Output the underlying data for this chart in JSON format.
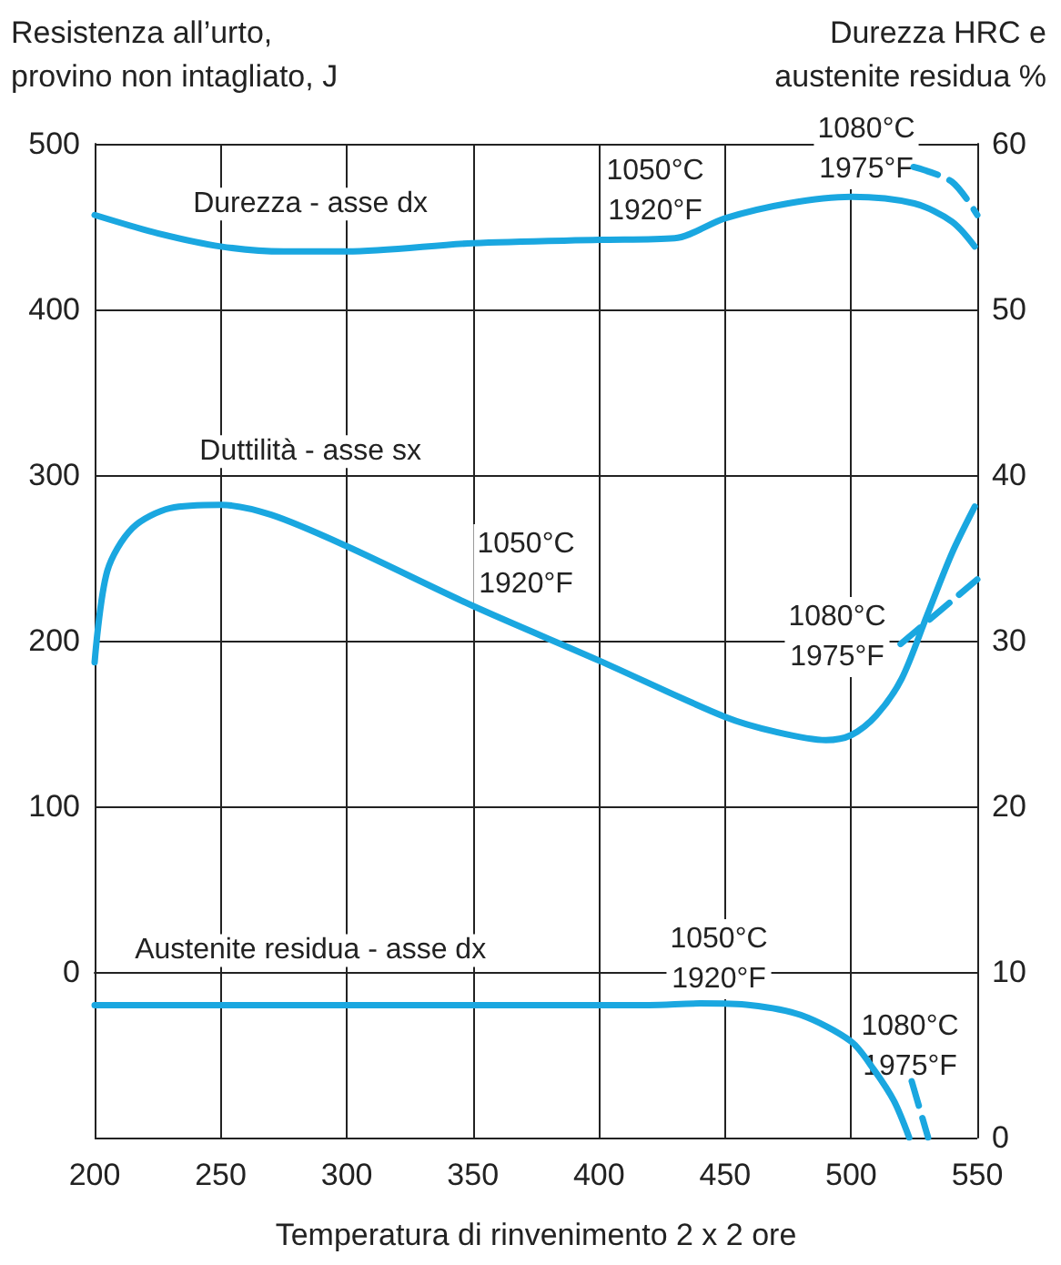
{
  "chart_data": {
    "type": "line",
    "xlabel": "Temperatura di rinvenimento 2 x 2 ore",
    "ylabel": "Resistenza all’urto,\nprovino non intagliato, J",
    "y2label": "Durezza HRC e\naustenite residua %",
    "xlim": [
      200,
      550
    ],
    "xticks": [
      200,
      250,
      300,
      350,
      400,
      450,
      500,
      550
    ],
    "ylim": [
      -100,
      500
    ],
    "yticks": [
      {
        "value": -100,
        "label": null
      },
      0,
      100,
      200,
      300,
      400,
      500
    ],
    "y2lim": [
      0,
      60
    ],
    "y2ticks": [
      0,
      10,
      20,
      30,
      40,
      50,
      60
    ],
    "grid": true,
    "marker": "none",
    "line_style": "solid",
    "series": [
      {
        "name": "Durezza - asse dx",
        "color": "#1aa7e0",
        "axis": "y2",
        "x": [
          200,
          225,
          250,
          275,
          300,
          350,
          400,
          430,
          450,
          475,
          500,
          525,
          540,
          549
        ],
        "values": [
          55.7,
          54.6,
          53.8,
          53.5,
          53.5,
          54.0,
          54.2,
          54.3,
          55.5,
          56.4,
          56.8,
          56.4,
          55.3,
          53.8
        ]
      },
      {
        "color": "#1aa7e0",
        "axis": "y2",
        "line_style": "dashed",
        "x": [
          524.7,
          540,
          550
        ],
        "values": [
          58.6,
          57.7,
          55.7
        ]
      },
      {
        "name": "Duttilità - asse sx",
        "color": "#1aa7e0",
        "x": [
          200,
          205,
          215,
          230,
          250,
          270,
          300,
          350,
          400,
          450,
          470,
          490,
          500,
          510,
          520,
          530,
          540,
          549
        ],
        "values": [
          187,
          242,
          268,
          280,
          282,
          276,
          257,
          221,
          188,
          154,
          145,
          140,
          143,
          155,
          177,
          215,
          253,
          281
        ]
      },
      {
        "color": "#1aa7e0",
        "line_style": "dashed",
        "x": [
          519.6,
          550
        ],
        "values": [
          198,
          237
        ]
      },
      {
        "name": "Austenite residua - asse dx",
        "color": "#1aa7e0",
        "axis": "y2",
        "x": [
          200,
          300,
          400,
          420,
          440,
          460,
          480,
          500,
          509,
          517,
          523
        ],
        "values": [
          8.0,
          8.0,
          8.0,
          8.0,
          8.1,
          8.0,
          7.4,
          5.8,
          4.1,
          2.2,
          0
        ]
      },
      {
        "color": "#1aa7e0",
        "axis": "y2",
        "line_style": "dashed",
        "x": [
          524,
          530.5
        ],
        "values": [
          3.4,
          0
        ]
      }
    ],
    "annotations": [
      "1050°C\n1920°F",
      "1080°C\n1975°F",
      "1050°C\n1920°F",
      "1080°C\n1975°F",
      "1050°C\n1920°F",
      "1080°C\n1975°F"
    ]
  }
}
